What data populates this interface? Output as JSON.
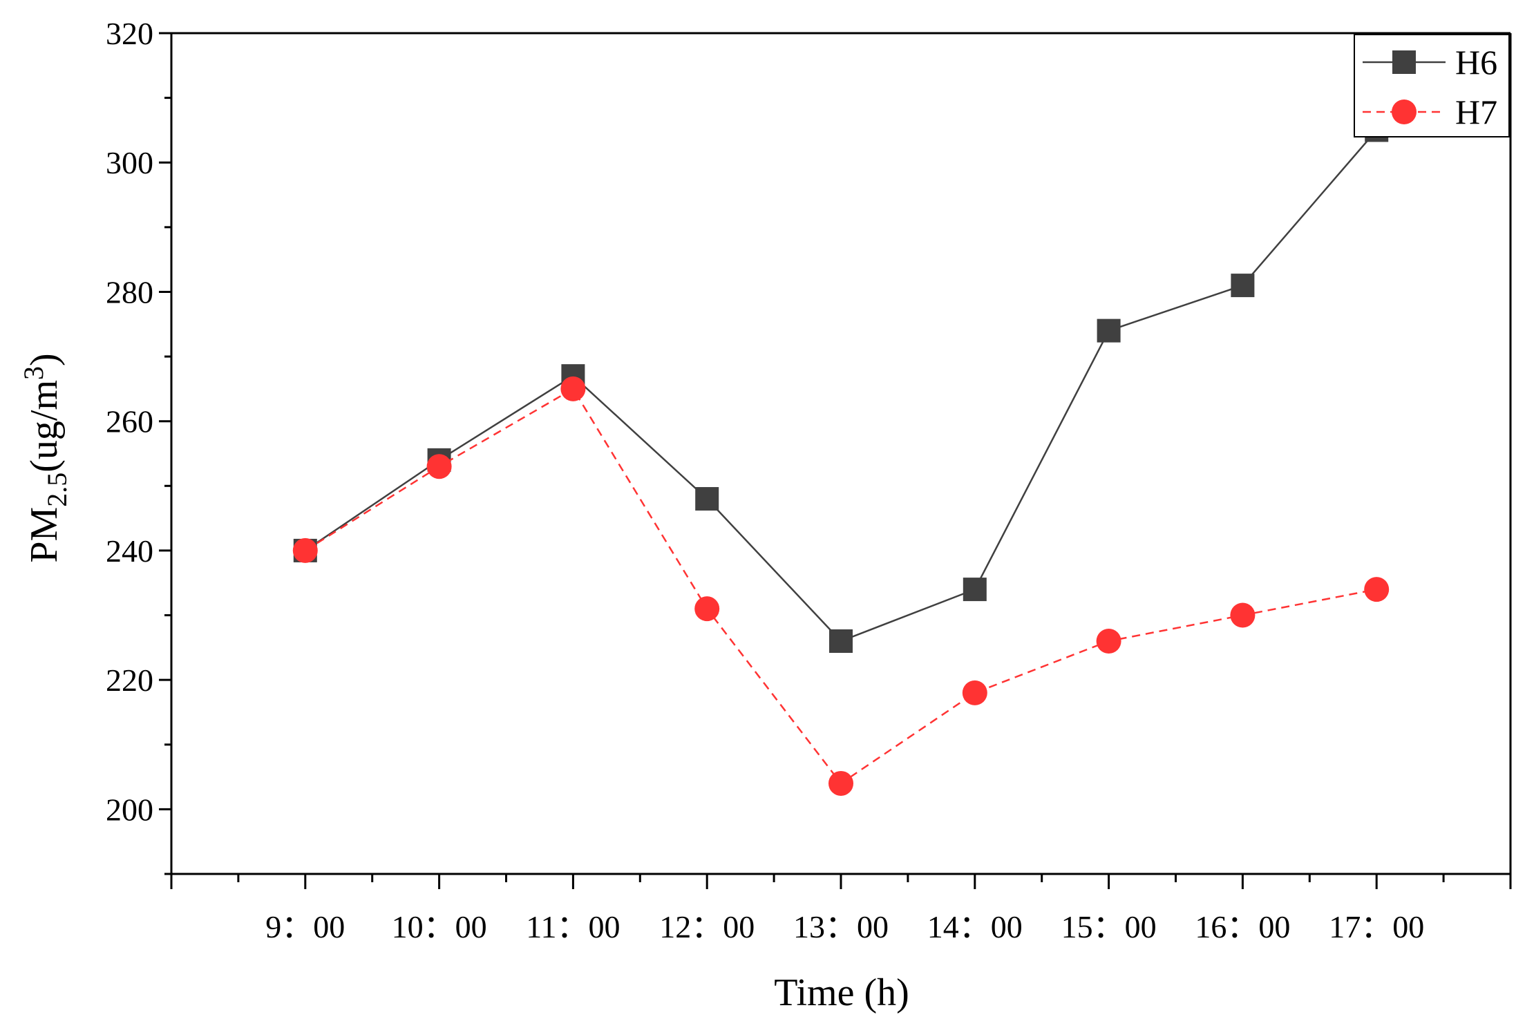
{
  "chart_data": {
    "type": "line",
    "title": "",
    "xlabel": "Time (h)",
    "ylabel": {
      "main": "PM",
      "sub": "2.5",
      "unit_prefix": "(ug/m",
      "sup": "3",
      "unit_suffix": ")"
    },
    "categories": [
      "9：00",
      "10：00",
      "11：00",
      "12：00",
      "13：00",
      "14：00",
      "15：00",
      "16：00",
      "17：00"
    ],
    "yticks": [
      200,
      220,
      240,
      260,
      280,
      300,
      320
    ],
    "ylim": [
      190,
      320
    ],
    "xlim": [
      0,
      10
    ],
    "grid": false,
    "legend_position": "top-right",
    "series": [
      {
        "name": "H6",
        "color": "#404040",
        "marker": "square",
        "line": "solid",
        "values": [
          240,
          254,
          267,
          248,
          226,
          234,
          274,
          281,
          305
        ]
      },
      {
        "name": "H7",
        "color": "#ff3333",
        "marker": "circle",
        "line": "dashed",
        "values": [
          240,
          253,
          265,
          231,
          204,
          218,
          226,
          230,
          234
        ]
      }
    ]
  }
}
